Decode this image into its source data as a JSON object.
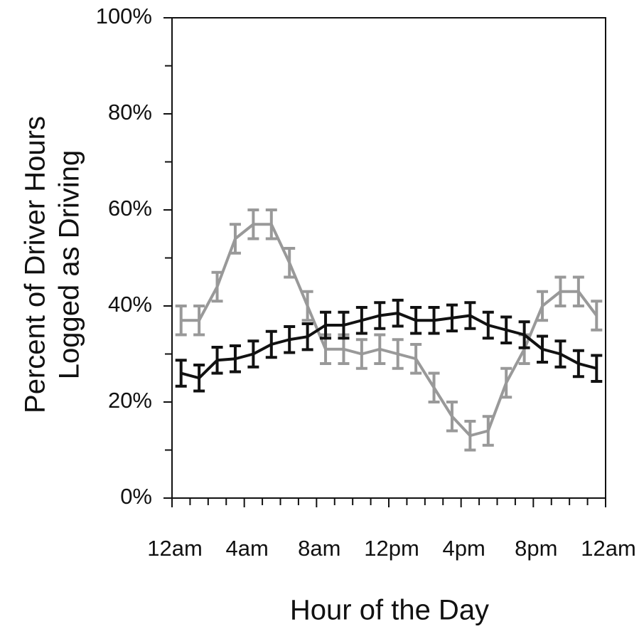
{
  "chart_data": {
    "type": "line",
    "ylabel": [
      "Percent of Driver Hours",
      "Logged as Driving"
    ],
    "xlabel": "Hour of the Day",
    "x": [
      0.5,
      1.5,
      2.5,
      3.5,
      4.5,
      5.5,
      6.5,
      7.5,
      8.5,
      9.5,
      10.5,
      11.5,
      12.5,
      13.5,
      14.5,
      15.5,
      16.5,
      17.5,
      18.5,
      19.5,
      20.5,
      21.5,
      22.5,
      23.5
    ],
    "xlim": [
      0,
      24
    ],
    "xticks": [
      {
        "value": 0,
        "label": "12am"
      },
      {
        "value": 4,
        "label": "4am"
      },
      {
        "value": 8,
        "label": "8am"
      },
      {
        "value": 12,
        "label": "12pm"
      },
      {
        "value": 16,
        "label": "4pm"
      },
      {
        "value": 20,
        "label": "8pm"
      },
      {
        "value": 24,
        "label": "12am"
      }
    ],
    "xminor_ticks": [
      1,
      2,
      3,
      5,
      6,
      7,
      9,
      10,
      11,
      13,
      14,
      15,
      17,
      18,
      19,
      21,
      22,
      23
    ],
    "ylim": [
      0,
      100
    ],
    "yticks": [
      {
        "value": 0,
        "label": "0%"
      },
      {
        "value": 20,
        "label": "20%"
      },
      {
        "value": 40,
        "label": "40%"
      },
      {
        "value": 60,
        "label": "60%"
      },
      {
        "value": 80,
        "label": "80%"
      },
      {
        "value": 100,
        "label": "100%"
      }
    ],
    "yminor_ticks": [
      10,
      30,
      50,
      70,
      90
    ],
    "series": [
      {
        "color": "#999999",
        "values": [
          37,
          37,
          44,
          54,
          57,
          57,
          49,
          40,
          31,
          31,
          30,
          31,
          30,
          29,
          23,
          17,
          13,
          14,
          24,
          31,
          40,
          43,
          43,
          38
        ],
        "errors": [
          3,
          3,
          3,
          3,
          3,
          3,
          3,
          3,
          3,
          3,
          3,
          3,
          3,
          3,
          3,
          3,
          3,
          3,
          3,
          3,
          3,
          3,
          3,
          3
        ]
      },
      {
        "color": "#111111",
        "values": [
          26,
          25,
          28.7,
          29,
          30,
          32,
          33,
          33.6,
          36,
          36,
          37,
          38,
          38.5,
          37,
          37,
          37.5,
          38,
          36,
          35,
          34,
          31,
          30,
          28,
          27
        ],
        "errors": [
          2.7,
          2.7,
          2.7,
          2.7,
          2.7,
          2.7,
          2.7,
          2.7,
          2.7,
          2.7,
          2.7,
          2.7,
          2.7,
          2.7,
          2.7,
          2.7,
          2.7,
          2.7,
          2.7,
          2.7,
          2.7,
          2.7,
          2.7,
          2.7
        ]
      }
    ]
  }
}
